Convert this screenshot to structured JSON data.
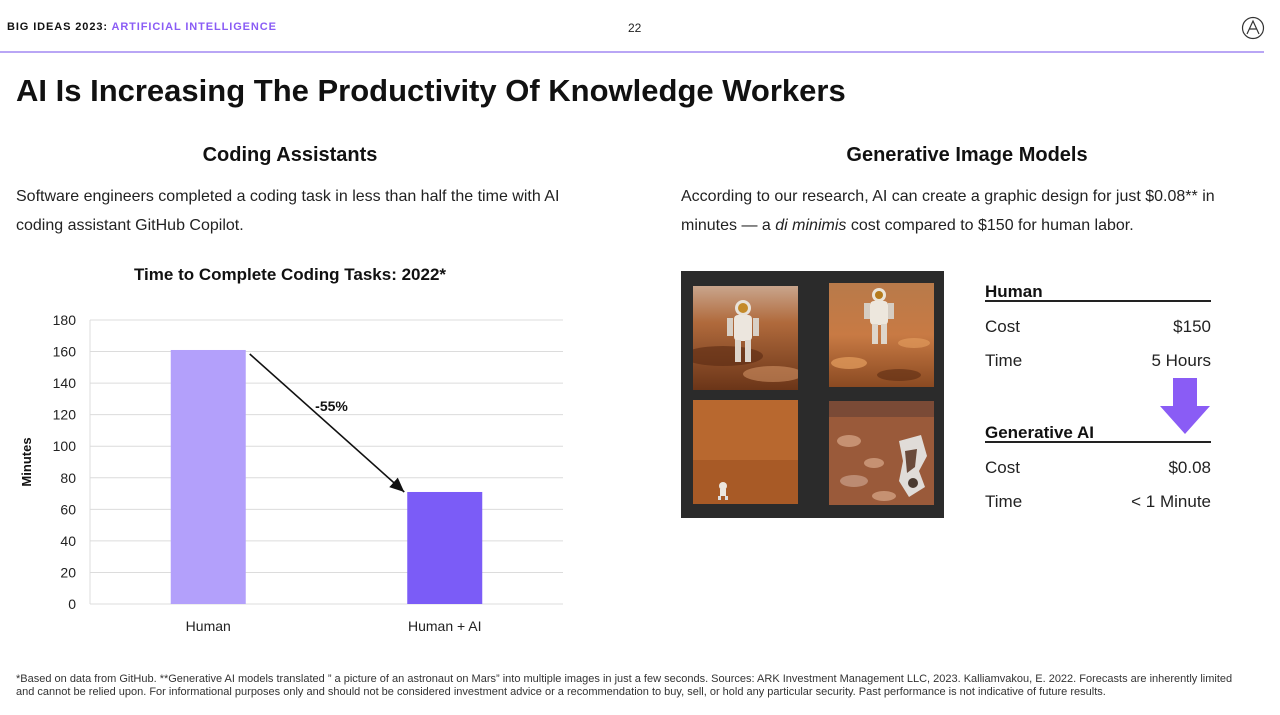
{
  "header": {
    "brand_prefix": "BIG IDEAS 2023:",
    "brand_topic": "ARTIFICIAL INTELLIGENCE",
    "page_number": "22",
    "logo_icon": "ark-logo-icon"
  },
  "title": "AI Is Increasing The Productivity Of Knowledge Workers",
  "left_section": {
    "heading": "Coding Assistants",
    "body_line1": "Software engineers completed a coding task in less than half the time with AI",
    "body_line2": "coding assistant GitHub Copilot."
  },
  "right_section": {
    "heading": "Generative Image Models",
    "body_line1": "According to our research, AI can create a graphic design for just $0.08** in",
    "body_line2_pre": "minutes — a ",
    "body_line2_em": "di minimis",
    "body_line2_post": " cost compared to $150 for human labor."
  },
  "chart_data": {
    "type": "bar",
    "title": "Time to Complete Coding Tasks: 2022*",
    "ylabel": "Minutes",
    "xlabel": "",
    "categories": [
      "Human",
      "Human + AI"
    ],
    "values": [
      161,
      71
    ],
    "ylim": [
      0,
      180
    ],
    "yticks": [
      0,
      20,
      40,
      60,
      80,
      100,
      120,
      140,
      160,
      180
    ],
    "grid": true,
    "legend": "none",
    "annotation": "-55%",
    "colors": [
      "#b3a0fb",
      "#7b5cf7"
    ]
  },
  "comparison": {
    "human": {
      "heading": "Human",
      "rows": [
        {
          "label": "Cost",
          "value": "$150"
        },
        {
          "label": "Time",
          "value": "5 Hours"
        }
      ]
    },
    "ai": {
      "heading": "Generative AI",
      "rows": [
        {
          "label": "Cost",
          "value": "$0.08"
        },
        {
          "label": "Time",
          "value": "< 1 Minute"
        }
      ]
    },
    "arrow_color": "#8a5cf5"
  },
  "footnote": "*Based on data from GitHub. **Generative AI models translated ” a picture of an astronaut on Mars” into multiple images in just a few seconds. Sources: ARK Investment Management LLC, 2023. Kalliamvakou, E. 2022. Forecasts are inherently limited and cannot be relied upon. For informational purposes only and should not be considered investment advice or a recommendation to buy, sell, or hold any particular security. Past performance is not indicative of future results."
}
